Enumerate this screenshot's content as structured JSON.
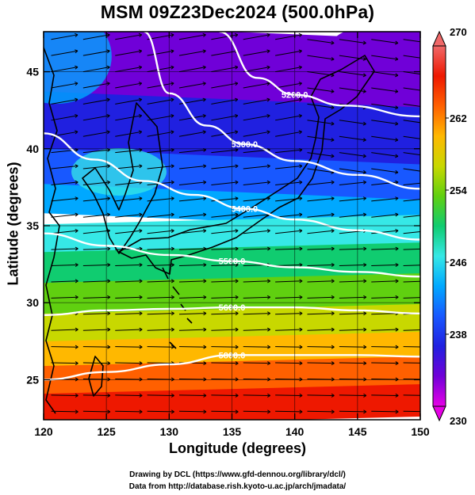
{
  "title": "MSM 09Z23Dec2024 (500.0hPa)",
  "x_axis": {
    "label": "Longitude (degrees)",
    "ticks": [
      "120",
      "125",
      "130",
      "135",
      "140",
      "145",
      "150"
    ],
    "range": [
      120,
      150
    ]
  },
  "y_axis": {
    "label": "Latitude  (degrees)",
    "ticks": [
      "25",
      "30",
      "35",
      "40",
      "45"
    ],
    "range": [
      22.4,
      47.6
    ]
  },
  "colorbar": {
    "ticks": [
      "230",
      "238",
      "246",
      "254",
      "262",
      "270"
    ],
    "range": [
      230,
      270
    ],
    "palette": [
      "#e600e6",
      "#7000d8",
      "#2020e0",
      "#1858ff",
      "#00a8ff",
      "#36e8e6",
      "#10cc70",
      "#60d010",
      "#c8d800",
      "#ffb800",
      "#ff6000",
      "#ee1800",
      "#f06868"
    ]
  },
  "contours": [
    {
      "label": "5200.0",
      "lat_at_lon": [
        [
          134,
          47.6
        ],
        [
          137,
          44.6
        ],
        [
          140,
          43.5
        ],
        [
          144,
          42.8
        ],
        [
          150,
          42.1
        ]
      ]
    },
    {
      "label": "5300.0",
      "lat_at_lon": [
        [
          128,
          47.6
        ],
        [
          130,
          43.6
        ],
        [
          133,
          41.5
        ],
        [
          136,
          40.3
        ],
        [
          140,
          39.2
        ],
        [
          145,
          38.3
        ],
        [
          150,
          37.4
        ]
      ]
    },
    {
      "label": "5400.0",
      "lat_at_lon": [
        [
          120,
          41.0
        ],
        [
          124,
          39.3
        ],
        [
          128,
          37.9
        ],
        [
          132,
          37.0
        ],
        [
          136,
          36.1
        ],
        [
          140,
          35.4
        ],
        [
          145,
          34.7
        ],
        [
          150,
          34.1
        ]
      ]
    },
    {
      "label": "5500.0",
      "lat_at_lon": [
        [
          120,
          34.5
        ],
        [
          125,
          33.7
        ],
        [
          130,
          33.1
        ],
        [
          135,
          32.7
        ],
        [
          140,
          32.3
        ],
        [
          145,
          32.0
        ],
        [
          150,
          31.7
        ]
      ]
    },
    {
      "label": "5600.0",
      "lat_at_lon": [
        [
          120,
          29.2
        ],
        [
          125,
          29.5
        ],
        [
          130,
          29.6
        ],
        [
          135,
          29.7
        ],
        [
          140,
          29.7
        ],
        [
          145,
          29.5
        ],
        [
          150,
          29.3
        ]
      ]
    },
    {
      "label": "5800.0",
      "lat_at_lon": [
        [
          120,
          25.0
        ],
        [
          125,
          25.5
        ],
        [
          130,
          26.0
        ],
        [
          135,
          26.6
        ],
        [
          140,
          26.6
        ],
        [
          145,
          26.6
        ],
        [
          150,
          26.5
        ]
      ]
    }
  ],
  "contour_color": "#ffffff",
  "vector_color": "#000000",
  "credits": [
    "Drawing by DCL (https://www.gfd-dennou.org/library/dcl/)",
    "Data from http://database.rish.kyoto-u.ac.jp/arch/jmadata/"
  ]
}
